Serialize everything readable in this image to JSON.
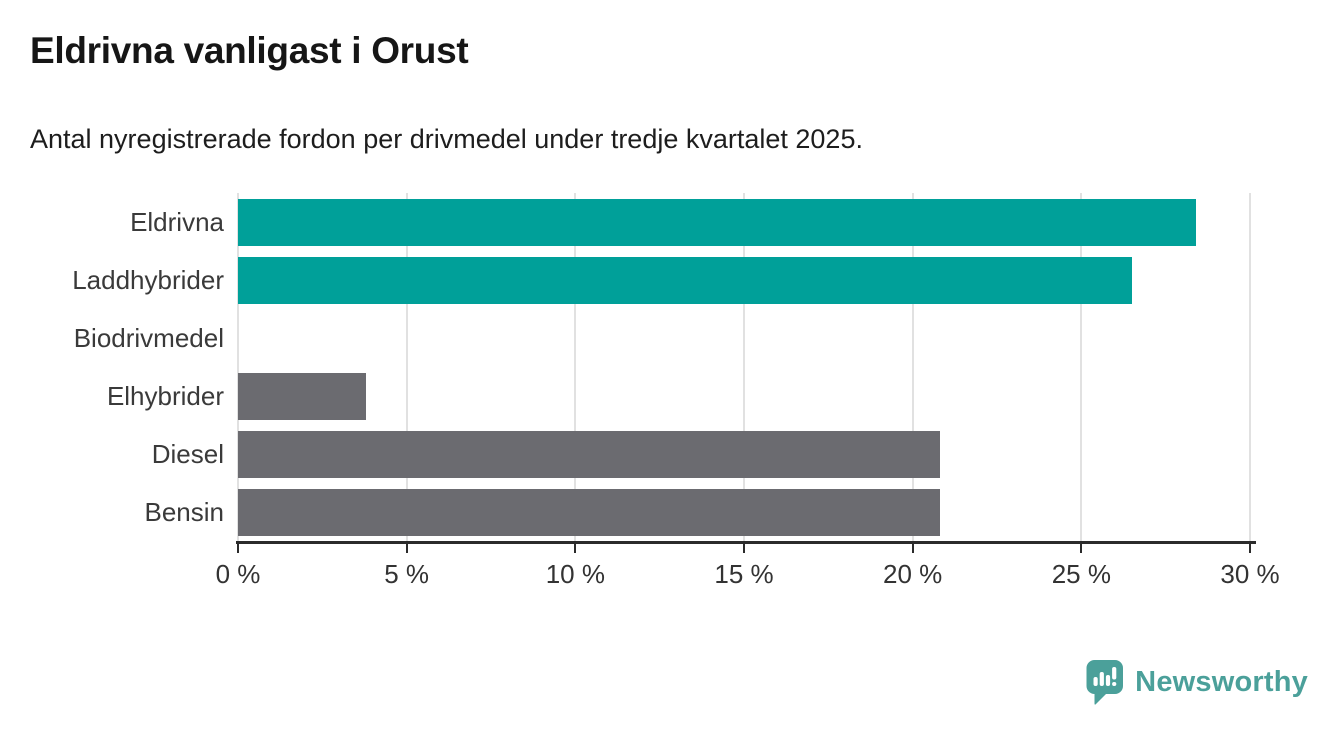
{
  "header": {
    "title": "Eldrivna vanligast i Orust",
    "subtitle": "Antal nyregistrerade fordon per drivmedel under tredje kvartalet 2025."
  },
  "chart_data": {
    "type": "bar",
    "orientation": "horizontal",
    "title": "Eldrivna vanligast i Orust",
    "subtitle": "Antal nyregistrerade fordon per drivmedel under tredje kvartalet 2025.",
    "categories": [
      "Eldrivna",
      "Laddhybrider",
      "Biodrivmedel",
      "Elhybrider",
      "Diesel",
      "Bensin"
    ],
    "values": [
      28.4,
      26.5,
      0,
      3.8,
      20.8,
      20.8
    ],
    "unit": "%",
    "xlim": [
      0,
      30
    ],
    "x_tick_values": [
      0,
      5,
      10,
      15,
      20,
      25,
      30
    ],
    "x_tick_labels": [
      "0 %",
      "5 %",
      "10 %",
      "15 %",
      "20 %",
      "25 %",
      "30 %"
    ],
    "grid": true,
    "legend": false,
    "bar_colors": [
      "#00a099",
      "#00a099",
      "#6b6b70",
      "#6b6b70",
      "#6b6b70",
      "#6b6b70"
    ],
    "highlight_color": "#00a099",
    "default_color": "#6b6b70"
  },
  "footer": {
    "brand": "Newsworthy",
    "brand_color": "#4ba09a",
    "logo_icon": "bar-chart-speech-bubble-icon"
  }
}
